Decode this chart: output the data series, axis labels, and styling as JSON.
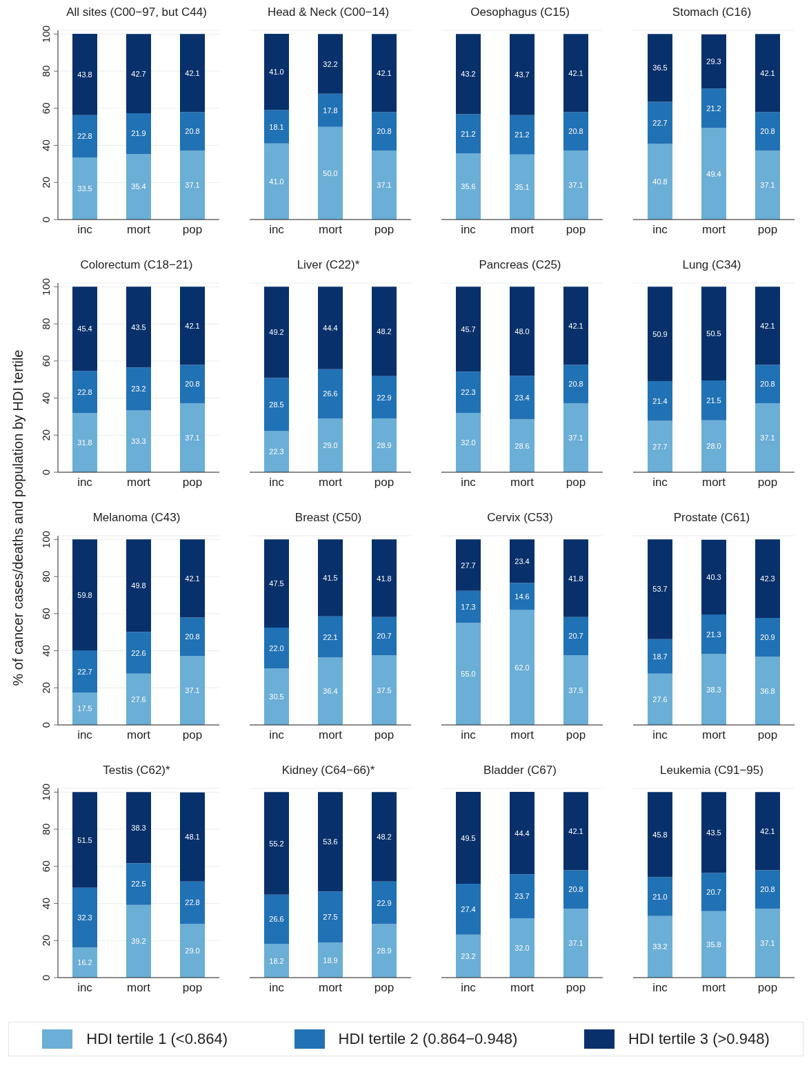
{
  "chart_data": [
    {
      "type": "bar",
      "stacked": true,
      "title": "All sites (C00−97, but C44)",
      "legend": "bottom",
      "categories": [
        "inc",
        "mort",
        "pop"
      ],
      "ylim": [
        0,
        102
      ],
      "yticks": [
        0,
        20,
        40,
        60,
        80,
        100
      ],
      "grid": "y",
      "series": [
        {
          "name": "HDI tertile 1 (<0.864)",
          "color": "#6baed6",
          "values": [
            33.5,
            35.4,
            37.1
          ],
          "value_labels": [
            "33.5",
            "35.4",
            "37.1"
          ]
        },
        {
          "name": "HDI tertile 2 (0.864−0.948)",
          "color": "#2171b5",
          "values": [
            22.8,
            21.9,
            20.8
          ],
          "value_labels": [
            "22.8",
            "21.9",
            "20.8"
          ]
        },
        {
          "name": "HDI tertile 3 (>0.948)",
          "color": "#08306b",
          "values": [
            43.8,
            42.7,
            42.1
          ],
          "value_labels": [
            "43.8",
            "42.7",
            "42.1"
          ]
        }
      ]
    },
    {
      "type": "bar",
      "stacked": true,
      "title": "Head & Neck (C00−14)",
      "categories": [
        "inc",
        "mort",
        "pop"
      ],
      "ylim": [
        0,
        102
      ],
      "yticks": [
        0,
        20,
        40,
        60,
        80,
        100
      ],
      "grid": "y",
      "tick_labels": "x",
      "series": [
        {
          "color": "#6baed6",
          "values": [
            41.0,
            50.0,
            37.1
          ],
          "value_labels": [
            "41.0",
            "50.0",
            "37.1"
          ]
        },
        {
          "color": "#2171b5",
          "values": [
            18.1,
            17.8,
            20.8
          ],
          "value_labels": [
            "18.1",
            "17.8",
            "20.8"
          ]
        },
        {
          "color": "#08306b",
          "values": [
            41.0,
            32.2,
            42.1
          ],
          "value_labels": [
            "41.0",
            "32.2",
            "42.1"
          ]
        }
      ]
    },
    {
      "type": "bar",
      "stacked": true,
      "title": "Oesophagus (C15)",
      "categories": [
        "inc",
        "mort",
        "pop"
      ],
      "ylim": [
        0,
        102
      ],
      "yticks": [
        0,
        20,
        40,
        60,
        80,
        100
      ],
      "grid": "y",
      "tick_labels": "x",
      "series": [
        {
          "color": "#6baed6",
          "values": [
            35.6,
            35.1,
            37.1
          ],
          "value_labels": [
            "35.6",
            "35.1",
            "37.1"
          ]
        },
        {
          "color": "#2171b5",
          "values": [
            21.2,
            21.2,
            20.8
          ],
          "value_labels": [
            "21.2",
            "21.2",
            "20.8"
          ]
        },
        {
          "color": "#08306b",
          "values": [
            43.2,
            43.7,
            42.1
          ],
          "value_labels": [
            "43.2",
            "43.7",
            "42.1"
          ]
        }
      ]
    },
    {
      "type": "bar",
      "stacked": true,
      "title": "Stomach (C16)",
      "categories": [
        "inc",
        "mort",
        "pop"
      ],
      "ylim": [
        0,
        102
      ],
      "yticks": [
        0,
        20,
        40,
        60,
        80,
        100
      ],
      "grid": "y",
      "tick_labels": "x",
      "series": [
        {
          "color": "#6baed6",
          "values": [
            40.8,
            49.4,
            37.1
          ],
          "value_labels": [
            "40.8",
            "49.4",
            "37.1"
          ]
        },
        {
          "color": "#2171b5",
          "values": [
            22.7,
            21.2,
            20.8
          ],
          "value_labels": [
            "22.7",
            "21.2",
            "20.8"
          ]
        },
        {
          "color": "#08306b",
          "values": [
            36.5,
            29.3,
            42.1
          ],
          "value_labels": [
            "36.5",
            "29.3",
            "42.1"
          ]
        }
      ]
    },
    {
      "type": "bar",
      "stacked": true,
      "title": "Colorectum (C18−21)",
      "categories": [
        "inc",
        "mort",
        "pop"
      ],
      "ylim": [
        0,
        102
      ],
      "yticks": [
        0,
        20,
        40,
        60,
        80,
        100
      ],
      "grid": "y",
      "series": [
        {
          "color": "#6baed6",
          "values": [
            31.8,
            33.3,
            37.1
          ],
          "value_labels": [
            "31.8",
            "33.3",
            "37.1"
          ]
        },
        {
          "color": "#2171b5",
          "values": [
            22.8,
            23.2,
            20.8
          ],
          "value_labels": [
            "22.8",
            "23.2",
            "20.8"
          ]
        },
        {
          "color": "#08306b",
          "values": [
            45.4,
            43.5,
            42.1
          ],
          "value_labels": [
            "45.4",
            "43.5",
            "42.1"
          ]
        }
      ]
    },
    {
      "type": "bar",
      "stacked": true,
      "title": "Liver (C22)*",
      "categories": [
        "inc",
        "mort",
        "pop"
      ],
      "ylim": [
        0,
        102
      ],
      "yticks": [
        0,
        20,
        40,
        60,
        80,
        100
      ],
      "grid": "y",
      "tick_labels": "x",
      "series": [
        {
          "color": "#6baed6",
          "values": [
            22.3,
            29.0,
            28.9
          ],
          "value_labels": [
            "22.3",
            "29.0",
            "28.9"
          ]
        },
        {
          "color": "#2171b5",
          "values": [
            28.5,
            26.6,
            22.9
          ],
          "value_labels": [
            "28.5",
            "26.6",
            "22.9"
          ]
        },
        {
          "color": "#08306b",
          "values": [
            49.2,
            44.4,
            48.2
          ],
          "value_labels": [
            "49.2",
            "44.4",
            "48.2"
          ]
        }
      ]
    },
    {
      "type": "bar",
      "stacked": true,
      "title": "Pancreas (C25)",
      "categories": [
        "inc",
        "mort",
        "pop"
      ],
      "ylim": [
        0,
        102
      ],
      "yticks": [
        0,
        20,
        40,
        60,
        80,
        100
      ],
      "grid": "y",
      "tick_labels": "x",
      "series": [
        {
          "color": "#6baed6",
          "values": [
            32.0,
            28.6,
            37.1
          ],
          "value_labels": [
            "32.0",
            "28.6",
            "37.1"
          ]
        },
        {
          "color": "#2171b5",
          "values": [
            22.3,
            23.4,
            20.8
          ],
          "value_labels": [
            "22.3",
            "23.4",
            "20.8"
          ]
        },
        {
          "color": "#08306b",
          "values": [
            45.7,
            48.0,
            42.1
          ],
          "value_labels": [
            "45.7",
            "48.0",
            "42.1"
          ]
        }
      ]
    },
    {
      "type": "bar",
      "stacked": true,
      "title": "Lung (C34)",
      "categories": [
        "inc",
        "mort",
        "pop"
      ],
      "ylim": [
        0,
        102
      ],
      "yticks": [
        0,
        20,
        40,
        60,
        80,
        100
      ],
      "grid": "y",
      "tick_labels": "x",
      "series": [
        {
          "color": "#6baed6",
          "values": [
            27.7,
            28.0,
            37.1
          ],
          "value_labels": [
            "27.7",
            "28.0",
            "37.1"
          ]
        },
        {
          "color": "#2171b5",
          "values": [
            21.4,
            21.5,
            20.8
          ],
          "value_labels": [
            "21.4",
            "21.5",
            "20.8"
          ]
        },
        {
          "color": "#08306b",
          "values": [
            50.9,
            50.5,
            42.1
          ],
          "value_labels": [
            "50.9",
            "50.5",
            "42.1"
          ]
        }
      ]
    },
    {
      "type": "bar",
      "stacked": true,
      "title": "Melanoma (C43)",
      "ylabel": "% of cancer cases/deaths and population by HDI tertile",
      "categories": [
        "inc",
        "mort",
        "pop"
      ],
      "ylim": [
        0,
        102
      ],
      "yticks": [
        0,
        20,
        40,
        60,
        80,
        100
      ],
      "grid": "y",
      "series": [
        {
          "color": "#6baed6",
          "values": [
            17.5,
            27.6,
            37.1
          ],
          "value_labels": [
            "17.5",
            "27.6",
            "37.1"
          ]
        },
        {
          "color": "#2171b5",
          "values": [
            22.7,
            22.6,
            20.8
          ],
          "value_labels": [
            "22.7",
            "22.6",
            "20.8"
          ]
        },
        {
          "color": "#08306b",
          "values": [
            59.8,
            49.8,
            42.1
          ],
          "value_labels": [
            "59.8",
            "49.8",
            "42.1"
          ]
        }
      ]
    },
    {
      "type": "bar",
      "stacked": true,
      "title": "Breast (C50)",
      "categories": [
        "inc",
        "mort",
        "pop"
      ],
      "ylim": [
        0,
        102
      ],
      "yticks": [
        0,
        20,
        40,
        60,
        80,
        100
      ],
      "grid": "y",
      "tick_labels": "x",
      "series": [
        {
          "color": "#6baed6",
          "values": [
            30.5,
            36.4,
            37.5
          ],
          "value_labels": [
            "30.5",
            "36.4",
            "37.5"
          ]
        },
        {
          "color": "#2171b5",
          "values": [
            22.0,
            22.1,
            20.7
          ],
          "value_labels": [
            "22.0",
            "22.1",
            "20.7"
          ]
        },
        {
          "color": "#08306b",
          "values": [
            47.5,
            41.5,
            41.8
          ],
          "value_labels": [
            "47.5",
            "41.5",
            "41.8"
          ]
        }
      ]
    },
    {
      "type": "bar",
      "stacked": true,
      "title": "Cervix (C53)",
      "categories": [
        "inc",
        "mort",
        "pop"
      ],
      "ylim": [
        0,
        102
      ],
      "yticks": [
        0,
        20,
        40,
        60,
        80,
        100
      ],
      "grid": "y",
      "tick_labels": "x",
      "series": [
        {
          "color": "#6baed6",
          "values": [
            55.0,
            62.0,
            37.5
          ],
          "value_labels": [
            "55.0",
            "62.0",
            "37.5"
          ]
        },
        {
          "color": "#2171b5",
          "values": [
            17.3,
            14.6,
            20.7
          ],
          "value_labels": [
            "17.3",
            "14.6",
            "20.7"
          ]
        },
        {
          "color": "#08306b",
          "values": [
            27.7,
            23.4,
            41.8
          ],
          "value_labels": [
            "27.7",
            "23.4",
            "41.8"
          ]
        }
      ]
    },
    {
      "type": "bar",
      "stacked": true,
      "title": "Prostate (C61)",
      "categories": [
        "inc",
        "mort",
        "pop"
      ],
      "ylim": [
        0,
        102
      ],
      "yticks": [
        0,
        20,
        40,
        60,
        80,
        100
      ],
      "grid": "y",
      "tick_labels": "x",
      "series": [
        {
          "color": "#6baed6",
          "values": [
            27.6,
            38.3,
            36.8
          ],
          "value_labels": [
            "27.6",
            "38.3",
            "36.8"
          ]
        },
        {
          "color": "#2171b5",
          "values": [
            18.7,
            21.3,
            20.9
          ],
          "value_labels": [
            "18.7",
            "21.3",
            "20.9"
          ]
        },
        {
          "color": "#08306b",
          "values": [
            53.7,
            40.3,
            42.3
          ],
          "value_labels": [
            "53.7",
            "40.3",
            "42.3"
          ]
        }
      ]
    },
    {
      "type": "bar",
      "stacked": true,
      "title": "Testis (C62)*",
      "categories": [
        "inc",
        "mort",
        "pop"
      ],
      "ylim": [
        0,
        102
      ],
      "yticks": [
        0,
        20,
        40,
        60,
        80,
        100
      ],
      "grid": "y",
      "series": [
        {
          "color": "#6baed6",
          "values": [
            16.2,
            39.2,
            29.0
          ],
          "value_labels": [
            "16.2",
            "39.2",
            "29.0"
          ]
        },
        {
          "color": "#2171b5",
          "values": [
            32.3,
            22.5,
            22.8
          ],
          "value_labels": [
            "32.3",
            "22.5",
            "22.8"
          ]
        },
        {
          "color": "#08306b",
          "values": [
            51.5,
            38.3,
            48.1
          ],
          "value_labels": [
            "51.5",
            "38.3",
            "48.1"
          ]
        }
      ]
    },
    {
      "type": "bar",
      "stacked": true,
      "title": "Kidney (C64−66)*",
      "categories": [
        "inc",
        "mort",
        "pop"
      ],
      "ylim": [
        0,
        102
      ],
      "yticks": [
        0,
        20,
        40,
        60,
        80,
        100
      ],
      "grid": "y",
      "tick_labels": "x",
      "series": [
        {
          "color": "#6baed6",
          "values": [
            18.2,
            18.9,
            28.9
          ],
          "value_labels": [
            "18.2",
            "18.9",
            "28.9"
          ]
        },
        {
          "color": "#2171b5",
          "values": [
            26.6,
            27.5,
            22.9
          ],
          "value_labels": [
            "26.6",
            "27.5",
            "22.9"
          ]
        },
        {
          "color": "#08306b",
          "values": [
            55.2,
            53.6,
            48.2
          ],
          "value_labels": [
            "55.2",
            "53.6",
            "48.2"
          ]
        }
      ]
    },
    {
      "type": "bar",
      "stacked": true,
      "title": "Bladder (C67)",
      "categories": [
        "inc",
        "mort",
        "pop"
      ],
      "ylim": [
        0,
        102
      ],
      "yticks": [
        0,
        20,
        40,
        60,
        80,
        100
      ],
      "grid": "y",
      "tick_labels": "x",
      "series": [
        {
          "color": "#6baed6",
          "values": [
            23.2,
            32.0,
            37.1
          ],
          "value_labels": [
            "23.2",
            "32.0",
            "37.1"
          ]
        },
        {
          "color": "#2171b5",
          "values": [
            27.4,
            23.7,
            20.8
          ],
          "value_labels": [
            "27.4",
            "23.7",
            "20.8"
          ]
        },
        {
          "color": "#08306b",
          "values": [
            49.5,
            44.4,
            42.1
          ],
          "value_labels": [
            "49.5",
            "44.4",
            "42.1"
          ]
        }
      ]
    },
    {
      "type": "bar",
      "stacked": true,
      "title": "Leukemia (C91−95)",
      "categories": [
        "inc",
        "mort",
        "pop"
      ],
      "ylim": [
        0,
        102
      ],
      "yticks": [
        0,
        20,
        40,
        60,
        80,
        100
      ],
      "grid": "y",
      "tick_labels": "x",
      "series": [
        {
          "color": "#6baed6",
          "values": [
            33.2,
            35.8,
            37.1
          ],
          "value_labels": [
            "33.2",
            "35.8",
            "37.1"
          ]
        },
        {
          "color": "#2171b5",
          "values": [
            21.0,
            20.7,
            20.8
          ],
          "value_labels": [
            "21.0",
            "20.7",
            "20.8"
          ]
        },
        {
          "color": "#08306b",
          "values": [
            45.8,
            43.5,
            42.1
          ],
          "value_labels": [
            "45.8",
            "43.5",
            "42.1"
          ]
        }
      ]
    }
  ]
}
